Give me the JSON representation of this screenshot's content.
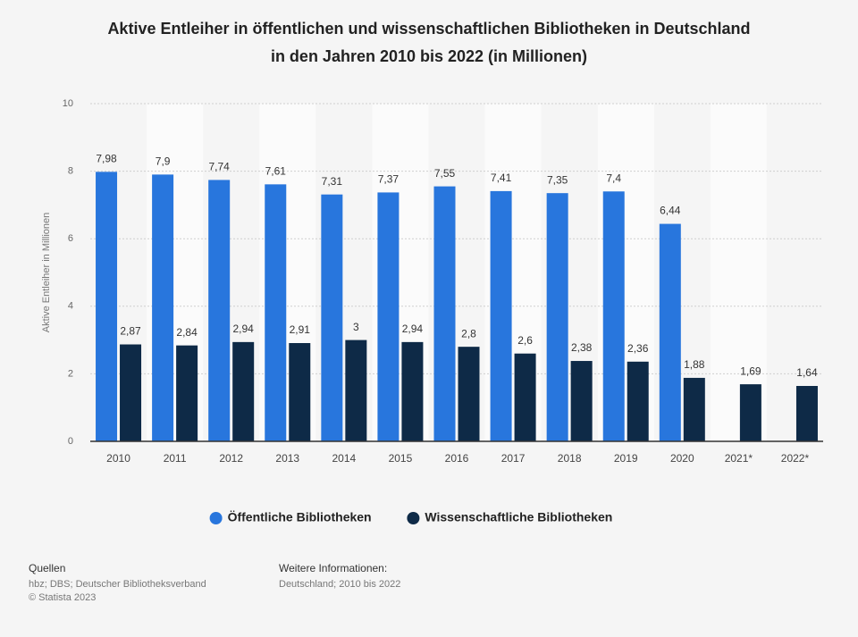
{
  "chart_data": {
    "type": "bar",
    "title": [
      "Aktive Entleiher in öffentlichen und wissenschaftlichen Bibliotheken in Deutschland",
      "in den Jahren 2010 bis 2022 (in Millionen)"
    ],
    "y_label": "Aktive Entleiher in Millionen",
    "categories": [
      "2010",
      "2011",
      "2012",
      "2013",
      "2014",
      "2015",
      "2016",
      "2017",
      "2018",
      "2019",
      "2020",
      "2021*",
      "2022*"
    ],
    "series": [
      {
        "name": "Öffentliche Bibliotheken",
        "color": "#2876dd",
        "values": [
          7.98,
          7.9,
          7.74,
          7.61,
          7.31,
          7.37,
          7.55,
          7.41,
          7.35,
          7.4,
          6.44,
          null,
          null
        ],
        "value_labels": [
          "7,98",
          "7,9",
          "7,74",
          "7,61",
          "7,31",
          "7,37",
          "7,55",
          "7,41",
          "7,35",
          "7,4",
          "6,44",
          null,
          null
        ]
      },
      {
        "name": "Wissenschaftliche Bibliotheken",
        "color": "#0e2a47",
        "values": [
          2.87,
          2.84,
          2.94,
          2.91,
          3,
          2.94,
          2.8,
          2.6,
          2.38,
          2.36,
          1.88,
          1.69,
          1.64
        ],
        "value_labels": [
          "2,87",
          "2,84",
          "2,94",
          "2,91",
          "3",
          "2,94",
          "2,8",
          "2,6",
          "2,38",
          "2,36",
          "1,88",
          "1,69",
          "1,64"
        ]
      }
    ],
    "ylim": [
      0,
      10
    ],
    "yticks": [
      0,
      2,
      4,
      6,
      8,
      10
    ],
    "grid": true,
    "legend": "bottom"
  },
  "footer": {
    "sources_title": "Quellen",
    "sources": "hbz; DBS; Deutscher Bibliotheksverband",
    "copyright": "© Statista 2023",
    "info_title": "Weitere Informationen:",
    "info": "Deutschland; 2010 bis 2022"
  }
}
